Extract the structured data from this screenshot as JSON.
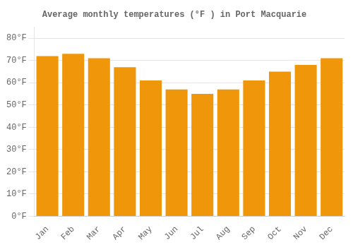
{
  "chart_data": {
    "type": "bar",
    "title": "Average monthly temperatures (°F ) in Port Macquarie",
    "categories": [
      "Jan",
      "Feb",
      "Mar",
      "Apr",
      "May",
      "Jun",
      "Jul",
      "Aug",
      "Sep",
      "Oct",
      "Nov",
      "Dec"
    ],
    "values": [
      72,
      73,
      71,
      67,
      61,
      57,
      55,
      57,
      61,
      65,
      68,
      71
    ],
    "color": "#F0960A",
    "ylim": [
      0,
      85
    ],
    "yticks": [
      {
        "value": 0,
        "label": "0°F"
      },
      {
        "value": 10,
        "label": "10°F"
      },
      {
        "value": 20,
        "label": "20°F"
      },
      {
        "value": 30,
        "label": "30°F"
      },
      {
        "value": 40,
        "label": "40°F"
      },
      {
        "value": 50,
        "label": "50°F"
      },
      {
        "value": 60,
        "label": "60°F"
      },
      {
        "value": 70,
        "label": "70°F"
      },
      {
        "value": 80,
        "label": "80°F"
      }
    ],
    "grid": "y"
  }
}
